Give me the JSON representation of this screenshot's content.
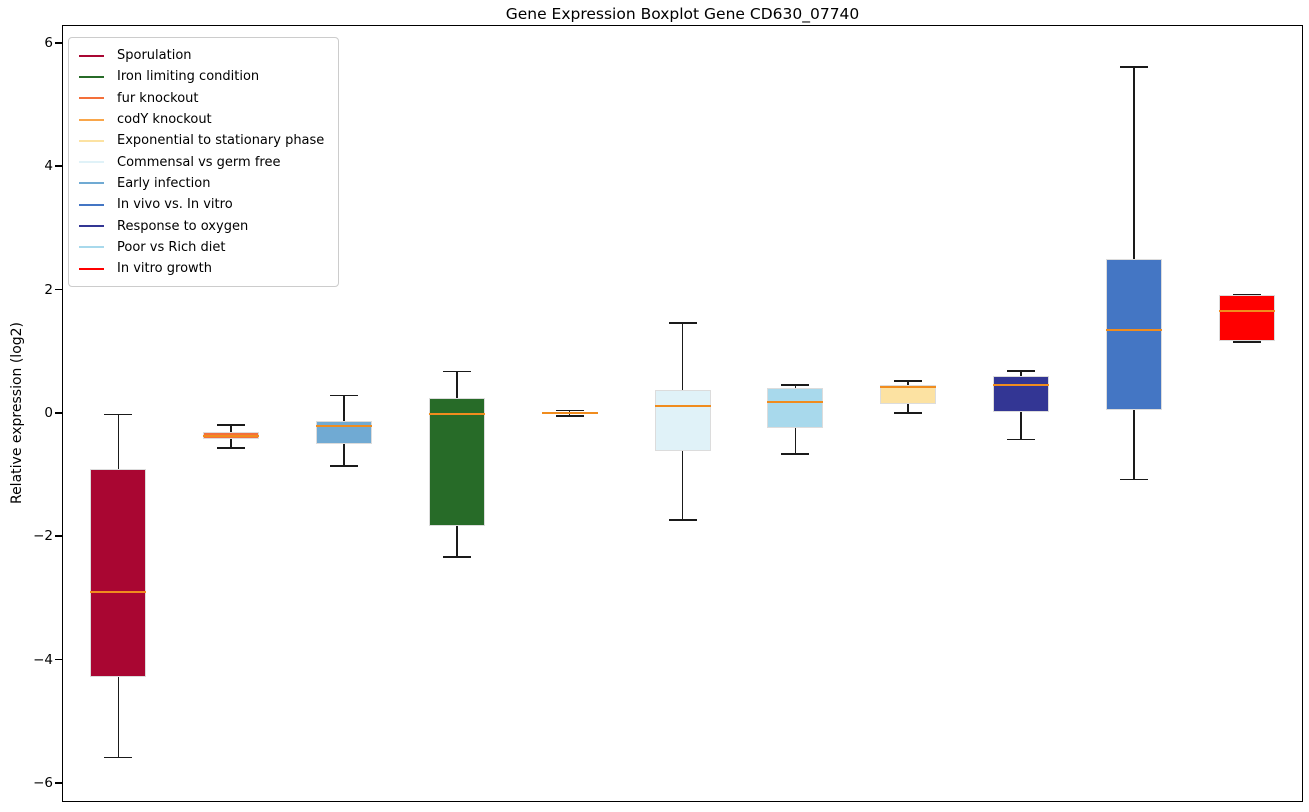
{
  "figure": {
    "title": "Gene Expression Boxplot Gene CD630_07740"
  },
  "chart_data": {
    "type": "boxplot",
    "title": "Gene Expression Boxplot Gene CD630_07740",
    "xlabel": "",
    "ylabel": "Relative expression (log2)",
    "ylim": [
      -6.31,
      6.29
    ],
    "grid": false,
    "legend_position": "upper left",
    "colors": {
      "median": "#f08c1e",
      "whisker": "#1a1a1a",
      "box_edge": "#dcdcdc",
      "spine": "#000000",
      "background": "#ffffff"
    },
    "yticks": [
      {
        "value": 6,
        "label": "6"
      },
      {
        "value": 4,
        "label": "4"
      },
      {
        "value": 2,
        "label": "2"
      },
      {
        "value": 0,
        "label": "0"
      },
      {
        "value": -2,
        "label": "−2"
      },
      {
        "value": -4,
        "label": "−4"
      },
      {
        "value": -6,
        "label": "−6"
      }
    ],
    "series": [
      {
        "name": "Sporulation",
        "color": "#a90632",
        "whisker_low": -5.59,
        "q1": -4.28,
        "median": -2.91,
        "q3": -0.91,
        "whisker_high": -0.03
      },
      {
        "name": "fur knockout",
        "color": "#f4703a",
        "whisker_low": -0.57,
        "q1": -0.43,
        "median": -0.37,
        "q3": -0.31,
        "whisker_high": -0.2
      },
      {
        "name": "Early infection",
        "color": "#70aad3",
        "whisker_low": -0.86,
        "q1": -0.51,
        "median": -0.22,
        "q3": -0.13,
        "whisker_high": 0.28
      },
      {
        "name": "Iron limiting condition",
        "color": "#276b28",
        "whisker_low": -2.34,
        "q1": -1.83,
        "median": -0.01,
        "q3": 0.24,
        "whisker_high": 0.67
      },
      {
        "name": "codY knockout",
        "color": "#f9a64a",
        "whisker_low": -0.05,
        "q1": -0.02,
        "median": 0.0,
        "q3": 0.02,
        "whisker_high": 0.04
      },
      {
        "name": "Commensal vs germ free",
        "color": "#e0f2f8",
        "whisker_low": -1.74,
        "q1": -0.62,
        "median": 0.11,
        "q3": 0.37,
        "whisker_high": 1.46
      },
      {
        "name": "Poor vs Rich diet",
        "color": "#a8d9ec",
        "whisker_low": -0.67,
        "q1": -0.24,
        "median": 0.18,
        "q3": 0.41,
        "whisker_high": 0.45
      },
      {
        "name": "Exponential to stationary phase",
        "color": "#fce2a2",
        "whisker_low": 0.0,
        "q1": 0.14,
        "median": 0.42,
        "q3": 0.46,
        "whisker_high": 0.52
      },
      {
        "name": "Response to oxygen",
        "color": "#333694",
        "whisker_low": -0.43,
        "q1": 0.01,
        "median": 0.45,
        "q3": 0.6,
        "whisker_high": 0.68
      },
      {
        "name": "In vivo vs. In vitro",
        "color": "#4476c4",
        "whisker_low": -1.08,
        "q1": 0.05,
        "median": 1.34,
        "q3": 2.49,
        "whisker_high": 5.61
      },
      {
        "name": "In vitro growth",
        "color": "#ff0000",
        "whisker_low": 1.15,
        "q1": 1.16,
        "median": 1.65,
        "q3": 1.91,
        "whisker_high": 1.92
      }
    ],
    "legend": [
      {
        "label": "Sporulation",
        "color": "#a90632"
      },
      {
        "label": "Iron limiting condition",
        "color": "#276b28"
      },
      {
        "label": "fur knockout",
        "color": "#f4703a"
      },
      {
        "label": "codY knockout",
        "color": "#f9a64a"
      },
      {
        "label": "Exponential to stationary phase",
        "color": "#fce2a2"
      },
      {
        "label": "Commensal vs germ free",
        "color": "#e0f2f8"
      },
      {
        "label": "Early infection",
        "color": "#70aad3"
      },
      {
        "label": "In vivo vs. In vitro",
        "color": "#4476c4"
      },
      {
        "label": "Response to oxygen",
        "color": "#333694"
      },
      {
        "label": "Poor vs Rich diet",
        "color": "#a8d9ec"
      },
      {
        "label": "In vitro growth",
        "color": "#ff0000"
      }
    ]
  }
}
